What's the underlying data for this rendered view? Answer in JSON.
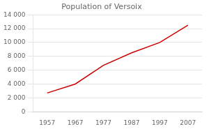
{
  "chart_data": {
    "type": "line",
    "title": "Population of Versoix",
    "x": [
      1957,
      1967,
      1977,
      1987,
      1997,
      2007
    ],
    "values": [
      2700,
      4000,
      6700,
      8500,
      10000,
      12500
    ],
    "color": "#cc0000",
    "xlim": [
      1952,
      2012
    ],
    "xticks": [
      1957,
      1967,
      1977,
      1987,
      1997,
      2007
    ],
    "ylim": [
      0,
      14000
    ],
    "yticks": [
      0,
      {
        "value": 2000,
        "label": "2 000"
      },
      {
        "value": 4000,
        "label": "4 000"
      },
      {
        "value": 6000,
        "label": "6 000"
      },
      {
        "value": 8000,
        "label": "8 000"
      },
      {
        "value": 10000,
        "label": "10 000"
      },
      {
        "value": 12000,
        "label": "12 000"
      },
      {
        "value": 14000,
        "label": "14 000"
      }
    ],
    "grid": "y"
  }
}
